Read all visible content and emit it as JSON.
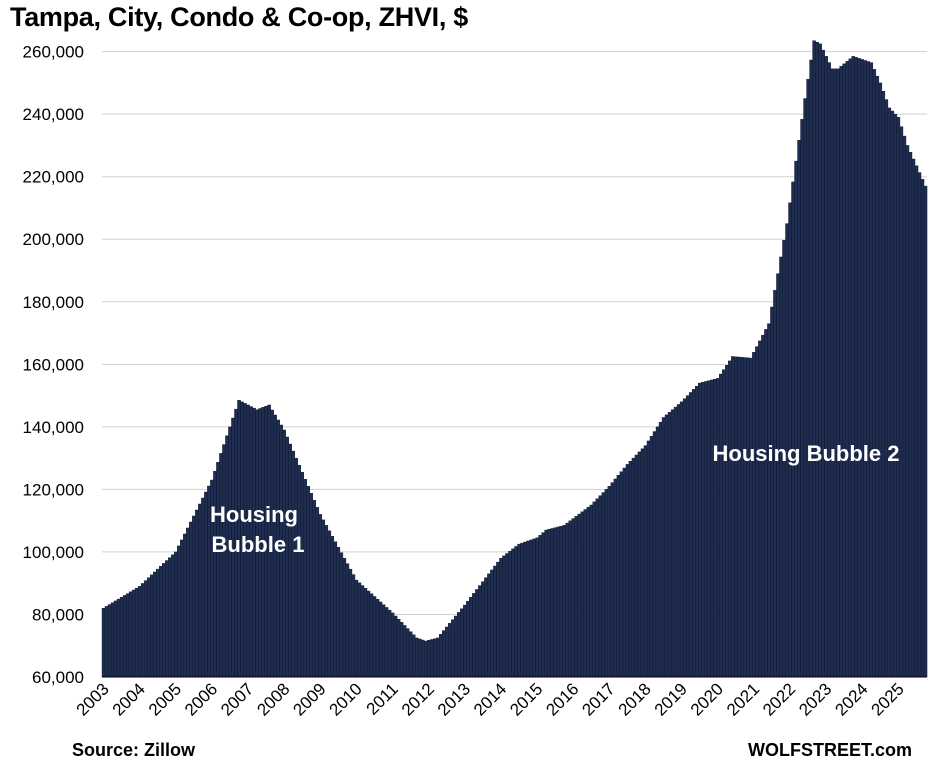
{
  "chart_data": {
    "type": "bar",
    "title": "Tampa, City, Condo & Co-op, ZHVI, $",
    "xlabel": "",
    "ylabel": "",
    "ylim": [
      60000,
      265000
    ],
    "yticks": [
      60000,
      80000,
      100000,
      120000,
      140000,
      160000,
      180000,
      200000,
      220000,
      240000,
      260000
    ],
    "ytick_labels": [
      "60,000",
      "80,000",
      "100,000",
      "120,000",
      "140,000",
      "160,000",
      "180,000",
      "200,000",
      "220,000",
      "240,000",
      "260,000"
    ],
    "xtick_labels": [
      "2003",
      "2004",
      "2005",
      "2006",
      "2007",
      "2008",
      "2009",
      "2010",
      "2011",
      "2012",
      "2013",
      "2014",
      "2015",
      "2016",
      "2017",
      "2018",
      "2019",
      "2020",
      "2021",
      "2022",
      "2023",
      "2024",
      "2025"
    ],
    "frequency": "monthly",
    "start": "2003-01",
    "end": "2025-10",
    "anchors": [
      [
        "2003-01",
        82000
      ],
      [
        "2004-01",
        89000
      ],
      [
        "2005-01",
        100000
      ],
      [
        "2006-01",
        123000
      ],
      [
        "2006-10",
        148500
      ],
      [
        "2007-04",
        145500
      ],
      [
        "2007-08",
        147000
      ],
      [
        "2008-01",
        139000
      ],
      [
        "2009-01",
        112000
      ],
      [
        "2010-01",
        91000
      ],
      [
        "2010-09",
        84000
      ],
      [
        "2011-01",
        80500
      ],
      [
        "2011-09",
        72500
      ],
      [
        "2011-12",
        71500
      ],
      [
        "2012-04",
        72500
      ],
      [
        "2013-01",
        83000
      ],
      [
        "2014-01",
        98000
      ],
      [
        "2014-07",
        102500
      ],
      [
        "2015-01",
        104500
      ],
      [
        "2015-04",
        107000
      ],
      [
        "2015-10",
        108500
      ],
      [
        "2016-07",
        115000
      ],
      [
        "2017-01",
        121000
      ],
      [
        "2017-07",
        128000
      ],
      [
        "2018-01",
        134000
      ],
      [
        "2018-07",
        143000
      ],
      [
        "2019-01",
        148000
      ],
      [
        "2019-07",
        154000
      ],
      [
        "2020-01",
        155500
      ],
      [
        "2020-06",
        162500
      ],
      [
        "2020-12",
        162000
      ],
      [
        "2021-06",
        173000
      ],
      [
        "2021-12",
        205000
      ],
      [
        "2022-06",
        245000
      ],
      [
        "2022-09",
        263500
      ],
      [
        "2022-11",
        262500
      ],
      [
        "2023-03",
        254500
      ],
      [
        "2023-05",
        254500
      ],
      [
        "2023-10",
        258500
      ],
      [
        "2024-01",
        257500
      ],
      [
        "2024-04",
        256500
      ],
      [
        "2024-07",
        250000
      ],
      [
        "2024-10",
        242000
      ],
      [
        "2025-01",
        239000
      ],
      [
        "2025-04",
        230000
      ],
      [
        "2025-10",
        217000
      ]
    ],
    "bar_color": "#1f2d50",
    "grid": true,
    "annotations": [
      "Housing\nBubble 1",
      "Housing Bubble 2"
    ]
  },
  "source": "Source: Zillow",
  "brand": "WOLFSTREET.com"
}
